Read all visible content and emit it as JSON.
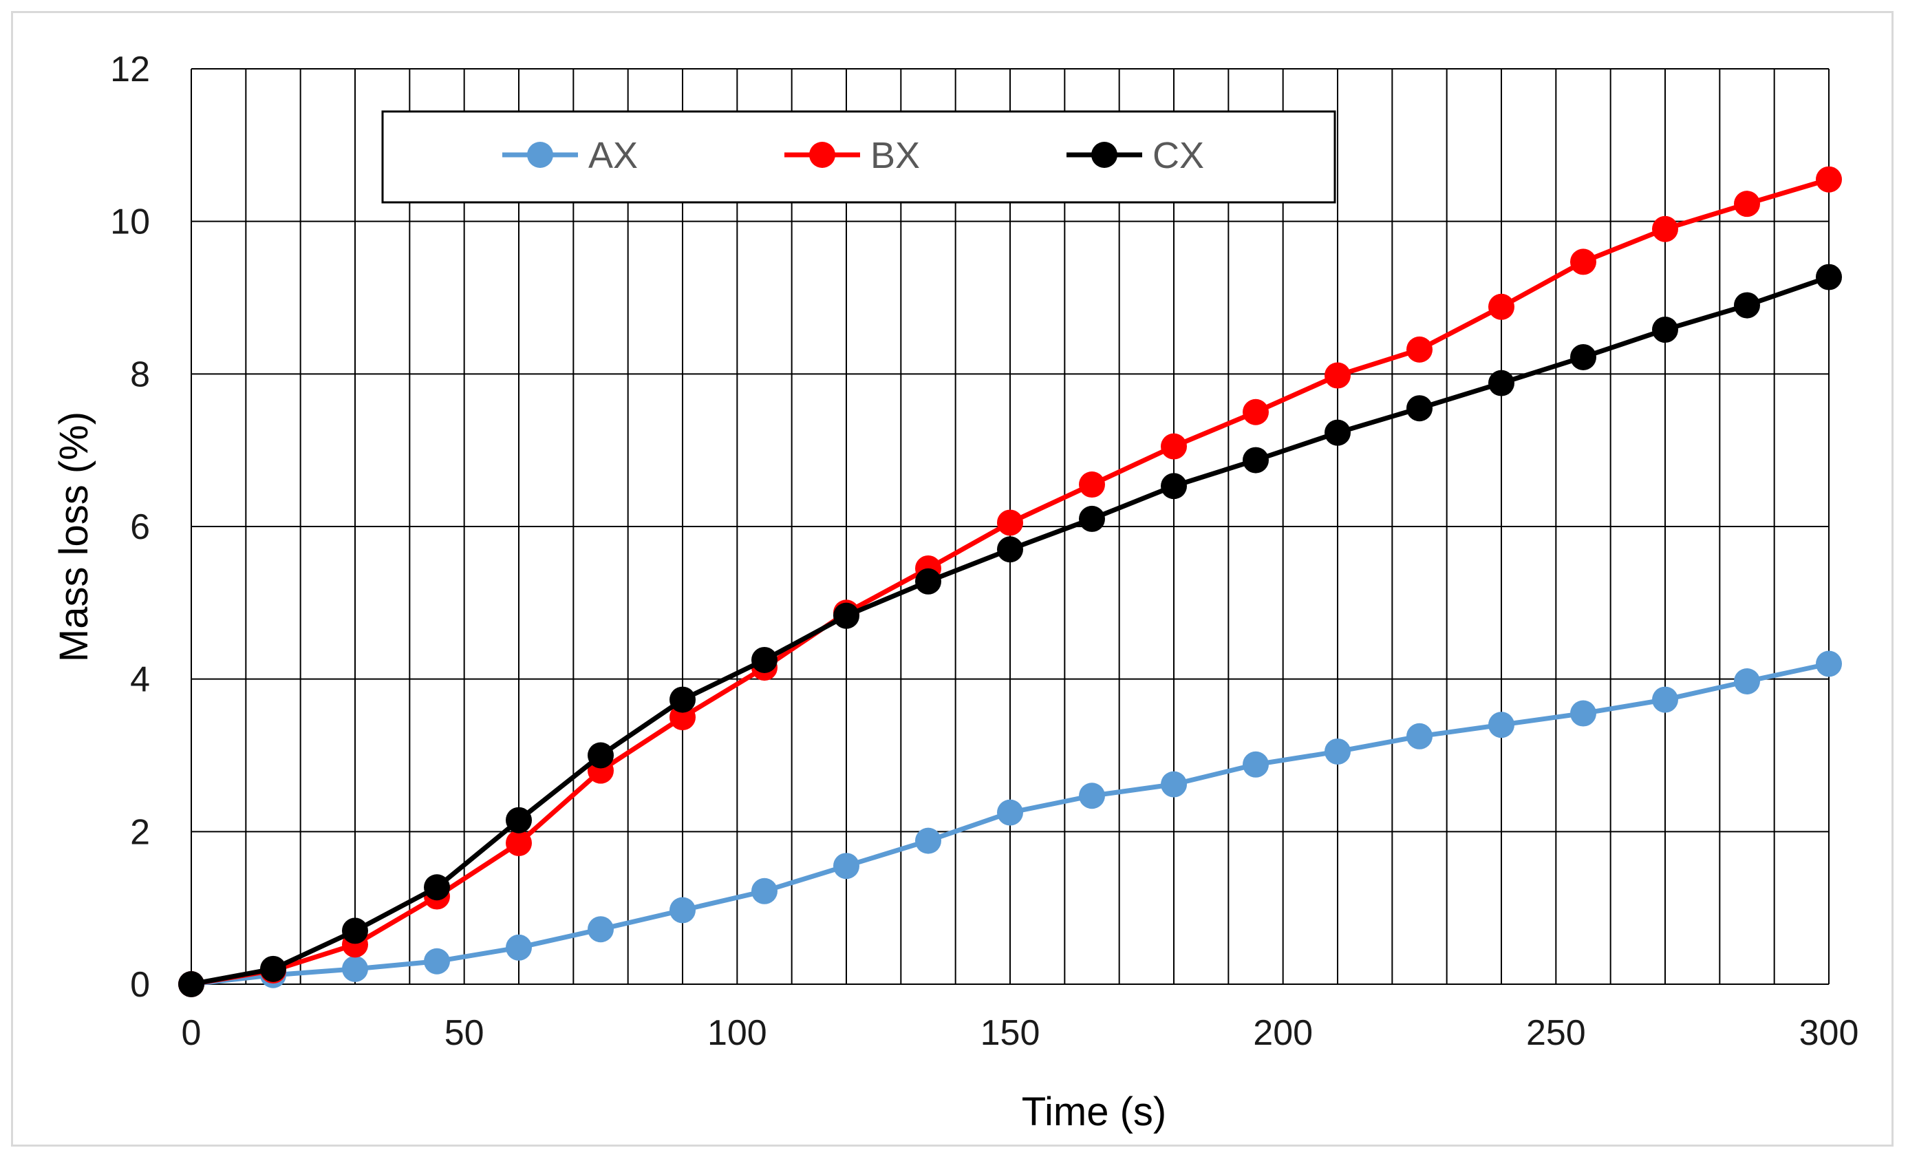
{
  "chart_data": {
    "type": "line",
    "title": "",
    "xlabel": "Time (s)",
    "ylabel": "Mass loss (%)",
    "xlim": [
      0,
      300
    ],
    "ylim": [
      0,
      12
    ],
    "x_ticks": [
      0,
      50,
      100,
      150,
      200,
      250,
      300
    ],
    "y_ticks": [
      0,
      2,
      4,
      6,
      8,
      10,
      12
    ],
    "x_minor_grid_step": 10,
    "grid": true,
    "legend_position": "top-center",
    "x": [
      0,
      15,
      30,
      45,
      60,
      75,
      90,
      105,
      120,
      135,
      150,
      165,
      180,
      195,
      210,
      225,
      240,
      255,
      270,
      285,
      300
    ],
    "series": [
      {
        "name": "AX",
        "color": "#5b9bd5",
        "values": [
          0,
          0.12,
          0.2,
          0.3,
          0.48,
          0.72,
          0.97,
          1.22,
          1.55,
          1.88,
          2.25,
          2.47,
          2.62,
          2.88,
          3.05,
          3.25,
          3.4,
          3.55,
          3.73,
          3.97,
          4.2
        ]
      },
      {
        "name": "BX",
        "color": "#ff0000",
        "values": [
          0,
          0.18,
          0.52,
          1.15,
          1.85,
          2.8,
          3.5,
          4.15,
          4.87,
          5.45,
          6.05,
          6.55,
          7.05,
          7.5,
          7.98,
          8.32,
          8.88,
          9.47,
          9.9,
          10.23,
          10.55
        ]
      },
      {
        "name": "CX",
        "color": "#000000",
        "values": [
          0,
          0.2,
          0.7,
          1.27,
          2.15,
          3.0,
          3.73,
          4.25,
          4.83,
          5.28,
          5.7,
          6.1,
          6.53,
          6.87,
          7.23,
          7.55,
          7.88,
          8.22,
          8.58,
          8.9,
          9.27
        ]
      }
    ]
  }
}
